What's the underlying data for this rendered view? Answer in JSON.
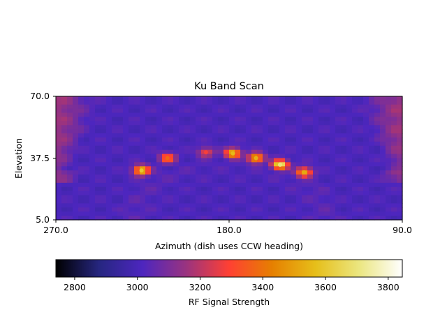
{
  "chart_data": {
    "type": "heatmap",
    "title": "Ku Band Scan",
    "xlabel": "Azimuth (dish uses CCW heading)",
    "ylabel": "Elevation",
    "xlim": [
      270.0,
      90.0
    ],
    "ylim": [
      5.0,
      70.0
    ],
    "x_ticks": [
      {
        "value": 270.0,
        "label": "270.0"
      },
      {
        "value": 180.0,
        "label": "180.0"
      },
      {
        "value": 90.0,
        "label": "90.0"
      }
    ],
    "y_ticks": [
      {
        "value": 5.0,
        "label": "5.0"
      },
      {
        "value": 37.5,
        "label": "37.5"
      },
      {
        "value": 70.0,
        "label": "70.0"
      }
    ],
    "colorbar": {
      "label": "RF Signal Strength",
      "colormap": "CMRmap",
      "range": [
        2740,
        3845
      ],
      "ticks": [
        {
          "value": 2800,
          "label": "2800"
        },
        {
          "value": 3000,
          "label": "3000"
        },
        {
          "value": 3200,
          "label": "3200"
        },
        {
          "value": 3400,
          "label": "3400"
        },
        {
          "value": 3600,
          "label": "3600"
        },
        {
          "value": 3800,
          "label": "3800"
        }
      ]
    },
    "field": {
      "background": 3010,
      "arc": {
        "center_az": 180,
        "center_el": 5,
        "radius": 34,
        "core_value": 2810,
        "halo_value": 3070
      },
      "edge_glow": [
        {
          "side": "left",
          "value": 3155
        },
        {
          "side": "right",
          "value": 3155
        }
      ],
      "hotspots": [
        {
          "az": 225.5,
          "el": 31.0,
          "value": 3600
        },
        {
          "az": 212.0,
          "el": 37.5,
          "value": 3380
        },
        {
          "az": 192.0,
          "el": 40.5,
          "value": 3280
        },
        {
          "az": 178.0,
          "el": 40.0,
          "value": 3560
        },
        {
          "az": 166.0,
          "el": 37.5,
          "value": 3540
        },
        {
          "az": 153.5,
          "el": 34.0,
          "value": 3700
        },
        {
          "az": 141.0,
          "el": 30.0,
          "value": 3520
        }
      ]
    }
  }
}
